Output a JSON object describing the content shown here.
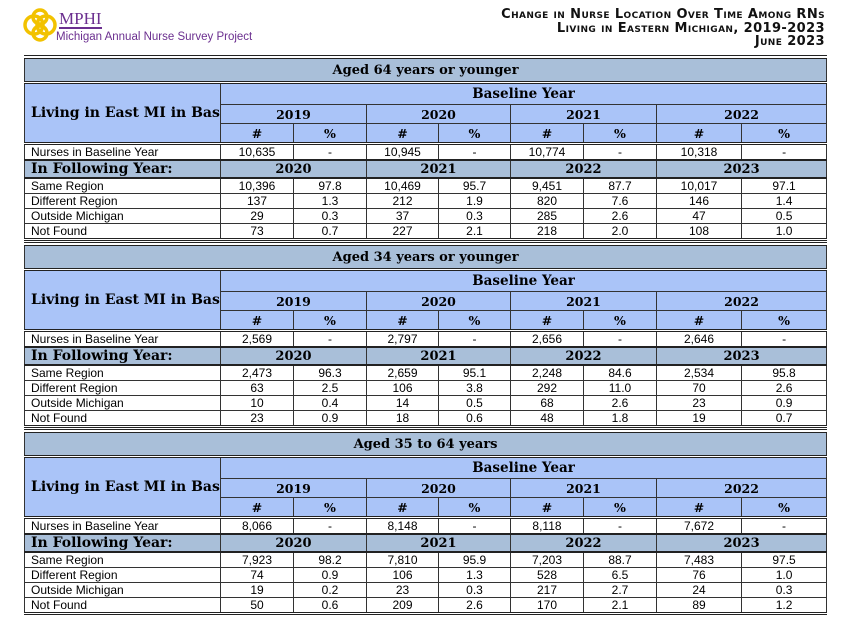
{
  "header": {
    "logo_name": "MPHI",
    "logo_subtitle": "Michigan Annual Nurse Survey Project",
    "title_lines": [
      "Change in Nurse Location Over Time Among RNs",
      "Living in Eastern Michigan, 2019-2023",
      "June 2023"
    ]
  },
  "colors": {
    "band": "#a9bfd9",
    "header": "#aac4f8",
    "brand": "#6b2f8f"
  },
  "labels": {
    "row_header": "Living in East MI in Baseline Year",
    "baseline_year": "Baseline Year",
    "num": "#",
    "pct": "%",
    "nurses_baseline": "Nurses in Baseline Year",
    "following_year": "In Following Year:"
  },
  "baseline_years": [
    "2019",
    "2020",
    "2021",
    "2022"
  ],
  "following_years": [
    "2020",
    "2021",
    "2022",
    "2023"
  ],
  "sections": [
    {
      "title": "Aged 64 years or younger",
      "nurses_baseline": [
        [
          "10,635",
          "-"
        ],
        [
          "10,945",
          "-"
        ],
        [
          "10,774",
          "-"
        ],
        [
          "10,318",
          "-"
        ]
      ],
      "rows": [
        {
          "label": "Same Region",
          "values": [
            [
              "10,396",
              "97.8"
            ],
            [
              "10,469",
              "95.7"
            ],
            [
              "9,451",
              "87.7"
            ],
            [
              "10,017",
              "97.1"
            ]
          ]
        },
        {
          "label": "Different Region",
          "values": [
            [
              "137",
              "1.3"
            ],
            [
              "212",
              "1.9"
            ],
            [
              "820",
              "7.6"
            ],
            [
              "146",
              "1.4"
            ]
          ]
        },
        {
          "label": "Outside Michigan",
          "values": [
            [
              "29",
              "0.3"
            ],
            [
              "37",
              "0.3"
            ],
            [
              "285",
              "2.6"
            ],
            [
              "47",
              "0.5"
            ]
          ]
        },
        {
          "label": "Not Found",
          "values": [
            [
              "73",
              "0.7"
            ],
            [
              "227",
              "2.1"
            ],
            [
              "218",
              "2.0"
            ],
            [
              "108",
              "1.0"
            ]
          ]
        }
      ]
    },
    {
      "title": "Aged 34 years or younger",
      "nurses_baseline": [
        [
          "2,569",
          "-"
        ],
        [
          "2,797",
          "-"
        ],
        [
          "2,656",
          "-"
        ],
        [
          "2,646",
          "-"
        ]
      ],
      "rows": [
        {
          "label": "Same Region",
          "values": [
            [
              "2,473",
              "96.3"
            ],
            [
              "2,659",
              "95.1"
            ],
            [
              "2,248",
              "84.6"
            ],
            [
              "2,534",
              "95.8"
            ]
          ]
        },
        {
          "label": "Different Region",
          "values": [
            [
              "63",
              "2.5"
            ],
            [
              "106",
              "3.8"
            ],
            [
              "292",
              "11.0"
            ],
            [
              "70",
              "2.6"
            ]
          ]
        },
        {
          "label": "Outside Michigan",
          "values": [
            [
              "10",
              "0.4"
            ],
            [
              "14",
              "0.5"
            ],
            [
              "68",
              "2.6"
            ],
            [
              "23",
              "0.9"
            ]
          ]
        },
        {
          "label": "Not Found",
          "values": [
            [
              "23",
              "0.9"
            ],
            [
              "18",
              "0.6"
            ],
            [
              "48",
              "1.8"
            ],
            [
              "19",
              "0.7"
            ]
          ]
        }
      ]
    },
    {
      "title": "Aged 35 to 64 years",
      "nurses_baseline": [
        [
          "8,066",
          "-"
        ],
        [
          "8,148",
          "-"
        ],
        [
          "8,118",
          "-"
        ],
        [
          "7,672",
          "-"
        ]
      ],
      "rows": [
        {
          "label": "Same Region",
          "values": [
            [
              "7,923",
              "98.2"
            ],
            [
              "7,810",
              "95.9"
            ],
            [
              "7,203",
              "88.7"
            ],
            [
              "7,483",
              "97.5"
            ]
          ]
        },
        {
          "label": "Different Region",
          "values": [
            [
              "74",
              "0.9"
            ],
            [
              "106",
              "1.3"
            ],
            [
              "528",
              "6.5"
            ],
            [
              "76",
              "1.0"
            ]
          ]
        },
        {
          "label": "Outside Michigan",
          "values": [
            [
              "19",
              "0.2"
            ],
            [
              "23",
              "0.3"
            ],
            [
              "217",
              "2.7"
            ],
            [
              "24",
              "0.3"
            ]
          ]
        },
        {
          "label": "Not Found",
          "values": [
            [
              "50",
              "0.6"
            ],
            [
              "209",
              "2.6"
            ],
            [
              "170",
              "2.1"
            ],
            [
              "89",
              "1.2"
            ]
          ]
        }
      ]
    }
  ]
}
